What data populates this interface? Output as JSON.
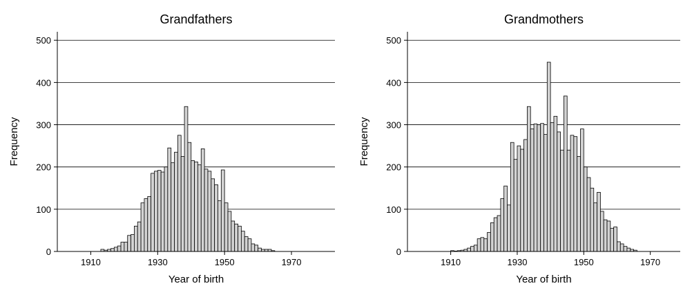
{
  "chart_data": [
    {
      "type": "histogram",
      "title": "Grandfathers",
      "xlabel": "Year of birth",
      "ylabel": "Frequency",
      "bins": [
        1913,
        1914,
        1915,
        1916,
        1917,
        1918,
        1919,
        1920,
        1921,
        1922,
        1923,
        1924,
        1925,
        1926,
        1927,
        1928,
        1929,
        1930,
        1931,
        1932,
        1933,
        1934,
        1935,
        1936,
        1937,
        1938,
        1939,
        1940,
        1941,
        1942,
        1943,
        1944,
        1945,
        1946,
        1947,
        1948,
        1949,
        1950,
        1951,
        1952,
        1953,
        1954,
        1955,
        1956,
        1957,
        1958,
        1959,
        1960,
        1961,
        1962,
        1963,
        1964,
        1965
      ],
      "values": [
        5,
        3,
        5,
        7,
        10,
        13,
        22,
        22,
        38,
        40,
        60,
        70,
        115,
        125,
        130,
        185,
        190,
        192,
        188,
        200,
        245,
        210,
        235,
        275,
        225,
        343,
        258,
        215,
        212,
        205,
        243,
        195,
        190,
        172,
        158,
        120,
        193,
        115,
        95,
        72,
        65,
        60,
        48,
        35,
        30,
        18,
        15,
        8,
        5,
        5,
        5,
        2
      ],
      "color": "#d3d3d3",
      "xlim": [
        1900,
        1983
      ],
      "ylim": [
        0,
        520
      ],
      "xticks": [
        1910,
        1930,
        1950,
        1970
      ],
      "yticks": [
        0,
        100,
        200,
        300,
        400,
        500
      ],
      "grid": true
    },
    {
      "type": "histogram",
      "title": "Grandmothers",
      "xlabel": "Year of birth",
      "ylabel": "Frequency",
      "bins": [
        1910,
        1911,
        1912,
        1913,
        1914,
        1915,
        1916,
        1917,
        1918,
        1919,
        1920,
        1921,
        1922,
        1923,
        1924,
        1925,
        1926,
        1927,
        1928,
        1929,
        1930,
        1931,
        1932,
        1933,
        1934,
        1935,
        1936,
        1937,
        1938,
        1939,
        1940,
        1941,
        1942,
        1943,
        1944,
        1945,
        1946,
        1947,
        1948,
        1949,
        1950,
        1951,
        1952,
        1953,
        1954,
        1955,
        1956,
        1957,
        1958,
        1959,
        1960,
        1961,
        1962,
        1963,
        1964,
        1965,
        1966
      ],
      "values": [
        2,
        1,
        2,
        3,
        5,
        8,
        12,
        15,
        30,
        33,
        30,
        45,
        68,
        80,
        85,
        125,
        155,
        110,
        258,
        218,
        250,
        242,
        265,
        343,
        290,
        302,
        300,
        303,
        277,
        448,
        305,
        320,
        283,
        240,
        368,
        240,
        275,
        272,
        225,
        290,
        200,
        175,
        150,
        115,
        140,
        95,
        75,
        72,
        55,
        58,
        23,
        18,
        12,
        8,
        5,
        3
      ],
      "color": "#d3d3d3",
      "xlim": [
        1897,
        1979
      ],
      "ylim": [
        0,
        520
      ],
      "xticks": [
        1910,
        1930,
        1950,
        1970
      ],
      "yticks": [
        0,
        100,
        200,
        300,
        400,
        500
      ],
      "grid": true
    }
  ]
}
